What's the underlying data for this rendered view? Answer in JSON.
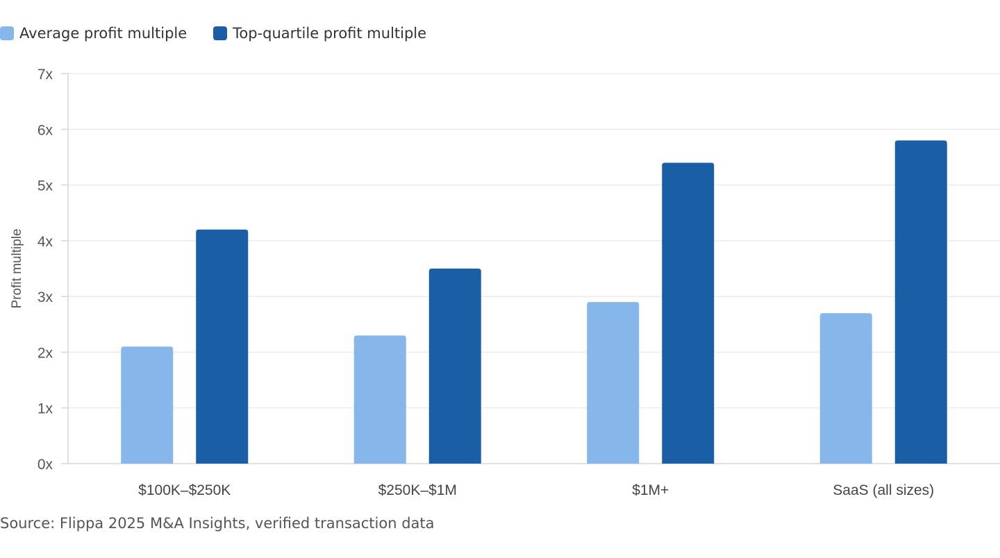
{
  "chart_data": {
    "type": "bar",
    "categories": [
      "$100K–$250K",
      "$250K–$1M",
      "$1M+",
      "SaaS (all sizes)"
    ],
    "series": [
      {
        "name": "Average profit multiple",
        "values": [
          2.1,
          2.3,
          2.9,
          2.7
        ],
        "color": "#86b6ea"
      },
      {
        "name": "Top-quartile profit multiple",
        "values": [
          4.2,
          3.5,
          5.4,
          5.8
        ],
        "color": "#1a5ea5"
      }
    ],
    "ylabel": "Profit multiple",
    "xlabel": "",
    "ylim": [
      0,
      7
    ],
    "yticks": [
      "0x",
      "1x",
      "2x",
      "3x",
      "4x",
      "5x",
      "6x",
      "7x"
    ],
    "grid": true,
    "legend": "top-left"
  },
  "source": "Source: Flippa 2025 M&A Insights, verified transaction data"
}
